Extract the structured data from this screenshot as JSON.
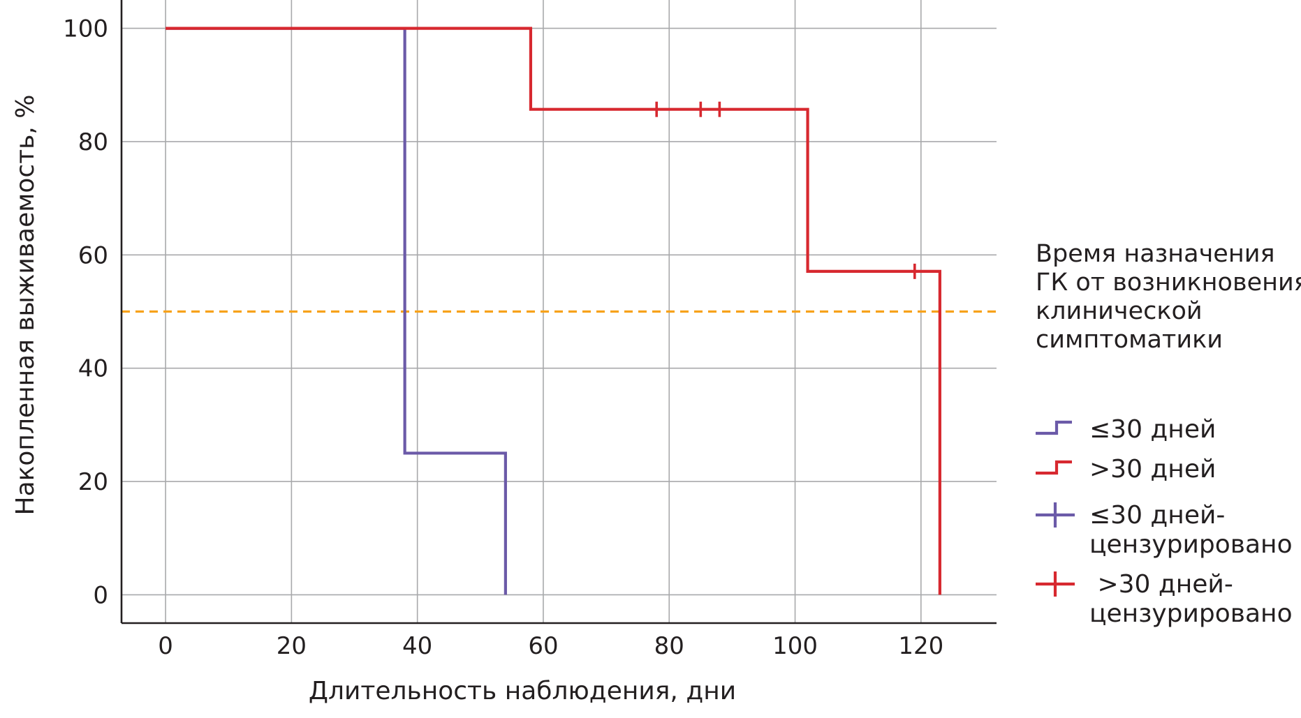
{
  "chart_data": {
    "type": "line",
    "xlabel": "Длительность наблюдения, дни",
    "ylabel": "Накопленная выживаемость, %",
    "xlim": [
      -7,
      132
    ],
    "ylim": [
      -5,
      105
    ],
    "x_ticks": [
      "0",
      "20",
      "40",
      "60",
      "80",
      "100",
      "120"
    ],
    "y_ticks": [
      "0",
      "20",
      "40",
      "60",
      "80",
      "100"
    ],
    "grid": true,
    "reference_line": {
      "y": 50,
      "color": "#f7a21b",
      "style": "dashed"
    },
    "legend": {
      "position": "right",
      "title": [
        "Время назначения",
        "ГК от возникновения",
        "клинической",
        "симптоматики"
      ],
      "entries": [
        {
          "label": [
            "≤30 дней"
          ],
          "symbol": "step",
          "color": "#6b5aa8"
        },
        {
          "label": [
            ">30 дней"
          ],
          "symbol": "step",
          "color": "#d7282f"
        },
        {
          "label": [
            "≤30 дней-",
            "цензурировано"
          ],
          "symbol": "cross",
          "color": "#6b5aa8"
        },
        {
          "label": [
            " >30 дней-",
            "цензурировано"
          ],
          "symbol": "cross",
          "color": "#d7282f"
        }
      ]
    },
    "series": [
      {
        "color": "#6b5aa8",
        "x": [
          0,
          38,
          38,
          54,
          54
        ],
        "y": [
          100,
          100,
          25,
          25,
          0
        ],
        "censored": []
      },
      {
        "color": "#d7282f",
        "x": [
          0,
          58,
          58,
          102,
          102,
          123,
          123
        ],
        "y": [
          100,
          100,
          85.7,
          85.7,
          57.1,
          57.1,
          0
        ],
        "censored": [
          [
            78,
            85.7
          ],
          [
            85,
            85.7
          ],
          [
            88,
            85.7
          ],
          [
            119,
            57.1
          ]
        ]
      }
    ]
  }
}
